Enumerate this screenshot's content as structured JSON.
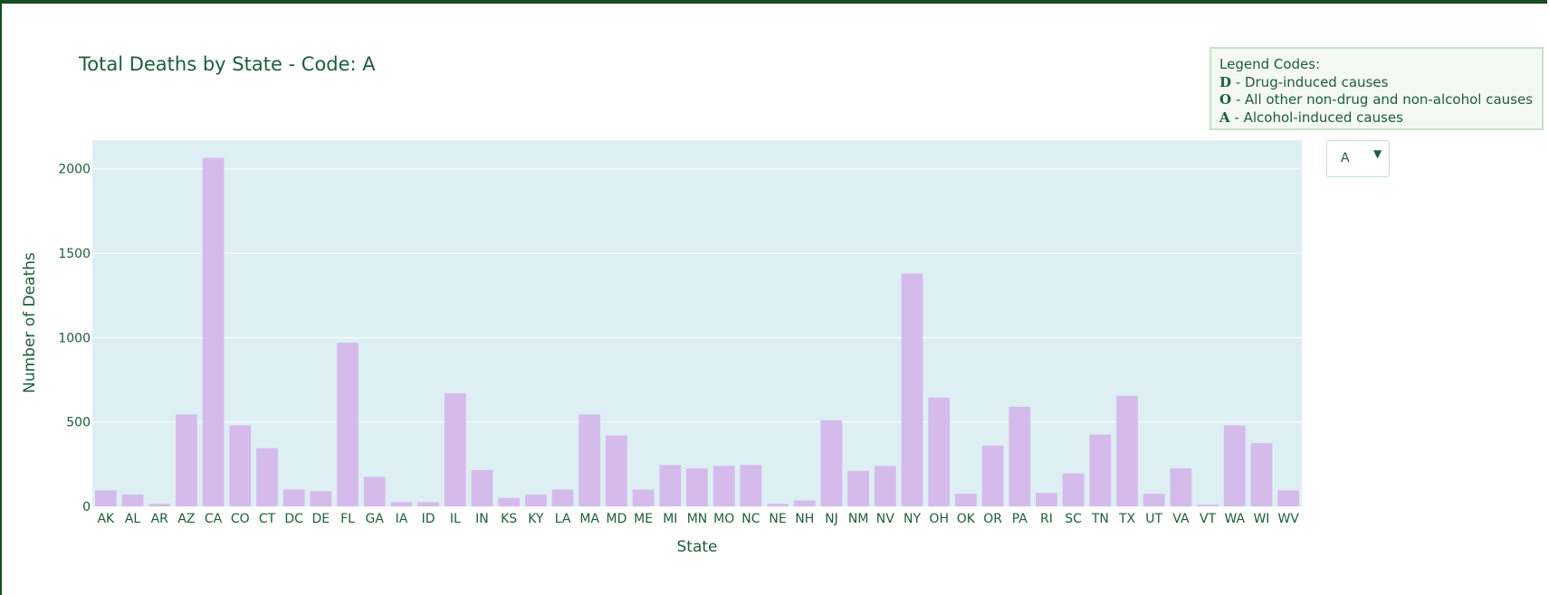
{
  "legend": {
    "heading": "Legend Codes:",
    "items": [
      {
        "code": "D",
        "text": " - Drug-induced causes"
      },
      {
        "code": "O",
        "text": " - All other non-drug and non-alcohol causes"
      },
      {
        "code": "A",
        "text": " - Alcohol-induced causes"
      }
    ]
  },
  "dropdown": {
    "selected": "A",
    "caret": "▼"
  },
  "colors": {
    "bar": "#d4bbec",
    "plot_bg": "#ddeff2",
    "text": "#1b5e3b",
    "frame": "#174d22",
    "grid": "#ffffff"
  },
  "chart_data": {
    "type": "bar",
    "title": "Total Deaths by State - Code: A",
    "xlabel": "State",
    "ylabel": "Number of Deaths",
    "ylim": [
      0,
      2170
    ],
    "yticks": [
      0,
      500,
      1000,
      1500,
      2000
    ],
    "grid": true,
    "categories": [
      "AK",
      "AL",
      "AR",
      "AZ",
      "CA",
      "CO",
      "CT",
      "DC",
      "DE",
      "FL",
      "GA",
      "IA",
      "ID",
      "IL",
      "IN",
      "KS",
      "KY",
      "LA",
      "MA",
      "MD",
      "ME",
      "MI",
      "MN",
      "MO",
      "NC",
      "NE",
      "NH",
      "NJ",
      "NM",
      "NV",
      "NY",
      "OH",
      "OK",
      "OR",
      "PA",
      "RI",
      "SC",
      "TN",
      "TX",
      "UT",
      "VA",
      "VT",
      "WA",
      "WI",
      "WV"
    ],
    "values": [
      95,
      70,
      15,
      545,
      2065,
      480,
      345,
      100,
      90,
      970,
      175,
      25,
      25,
      670,
      215,
      50,
      70,
      100,
      545,
      420,
      100,
      245,
      225,
      240,
      245,
      15,
      35,
      510,
      210,
      240,
      1380,
      645,
      75,
      360,
      590,
      80,
      195,
      425,
      655,
      75,
      225,
      10,
      480,
      375,
      95
    ]
  }
}
